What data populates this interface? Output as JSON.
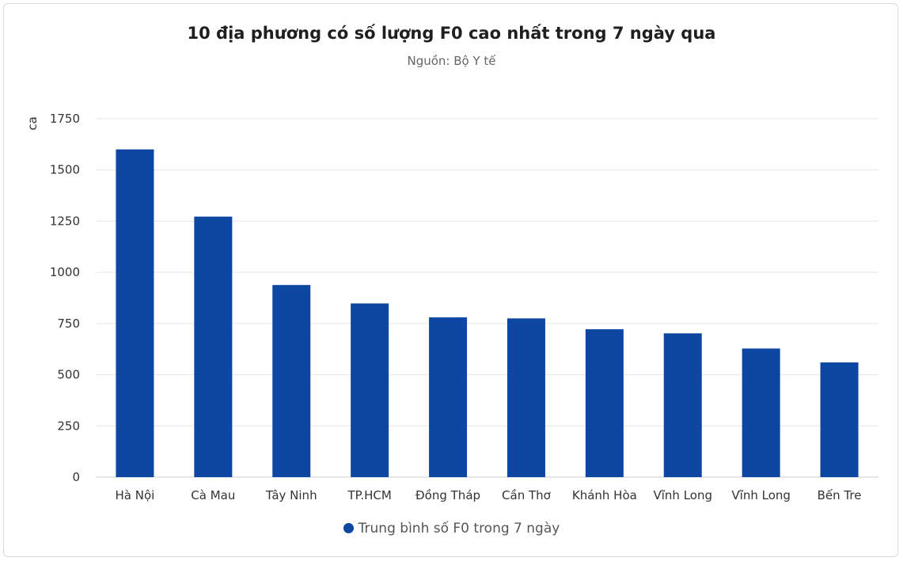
{
  "colors": {
    "bar": "#0d47a1",
    "grid": "#e6e6e6",
    "axis": "#cccccc",
    "text": "#333333"
  },
  "chart_data": {
    "type": "bar",
    "title": "10 địa phương có số lượng F0 cao nhất trong 7 ngày qua",
    "subtitle": "Nguồn: Bộ Y tế",
    "ylabel": "ca",
    "xlabel": "",
    "ylim": [
      0,
      1750
    ],
    "yticks": [
      "0",
      "250",
      "500",
      "750",
      "1000",
      "1250",
      "1500",
      "1750"
    ],
    "categories": [
      "Hà Nội",
      "Cà Mau",
      "Tây Ninh",
      "TP.HCM",
      "Đồng Tháp",
      "Cần Thơ",
      "Khánh Hòa",
      "Vĩnh Long",
      "Vĩnh Long",
      "Bến Tre"
    ],
    "series": [
      {
        "name": "Trung bình số F0 trong 7 ngày",
        "values": [
          1600,
          1272,
          938,
          848,
          780,
          775,
          722,
          702,
          628,
          560
        ]
      }
    ],
    "grid": true,
    "legend_position": "bottom-center"
  }
}
